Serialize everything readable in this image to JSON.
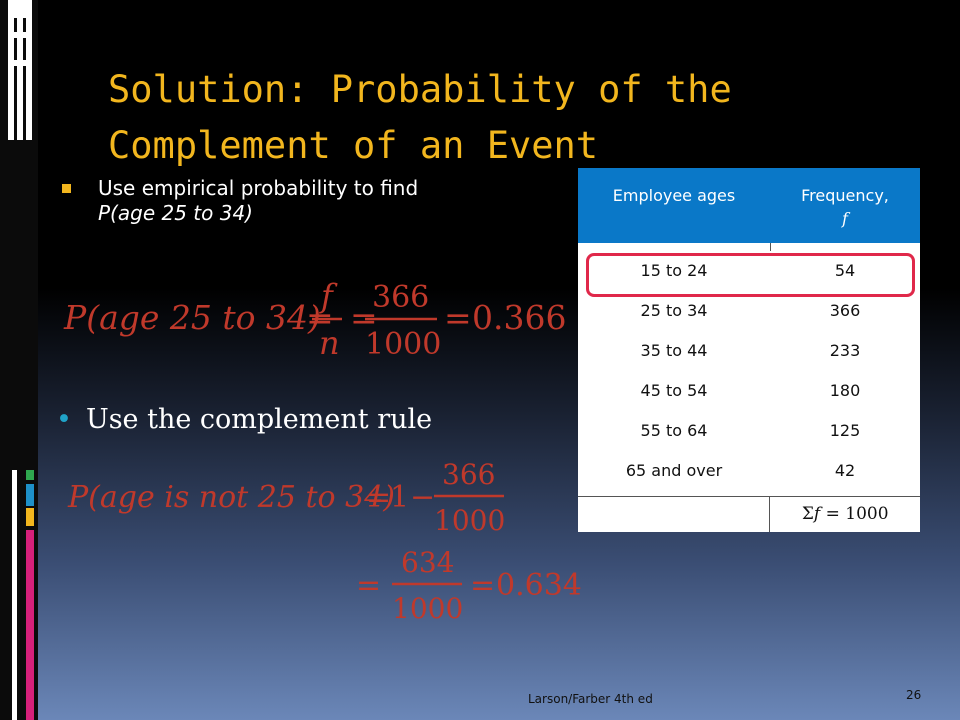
{
  "title": {
    "line1": "Solution: Probability of the",
    "line2": "Complement of an Event"
  },
  "bullet": {
    "text_plain": "Use empirical probability to find",
    "text_italic": "P(age 25 to 34)"
  },
  "formula1": {
    "lhs": "P(age 25 to 34)",
    "frac1_num": "f",
    "frac1_den": "n",
    "frac2_num": "366",
    "frac2_den": "1000",
    "result": "0.366"
  },
  "complement_text": "Use the complement rule",
  "formula2": {
    "lhs": "P(age is not 25 to 34)",
    "one": "1",
    "frac_num": "366",
    "frac_den": "1000",
    "frac2_num": "634",
    "frac2_den": "1000",
    "result": "0.634"
  },
  "table": {
    "header_col1": "Employee ages",
    "header_col2": "Frequency,",
    "header_col2_var": "f",
    "rows": [
      {
        "age": "15 to 24",
        "freq": "54"
      },
      {
        "age": "25 to 34",
        "freq": "366"
      },
      {
        "age": "35 to 44",
        "freq": "233"
      },
      {
        "age": "45 to 54",
        "freq": "180"
      },
      {
        "age": "55 to 64",
        "freq": "125"
      },
      {
        "age": "65 and over",
        "freq": "42"
      }
    ],
    "total_sigma": "Σ",
    "total_var": "f",
    "total_rest": " = 1000"
  },
  "footer": "Larson/Farber 4th ed",
  "page_number": "26",
  "colors": {
    "title": "#f2b61e",
    "formula": "#c0392b",
    "table_header": "#0a78c8",
    "highlight": "#e0284a",
    "bullet_dot": "#20a3c8"
  }
}
